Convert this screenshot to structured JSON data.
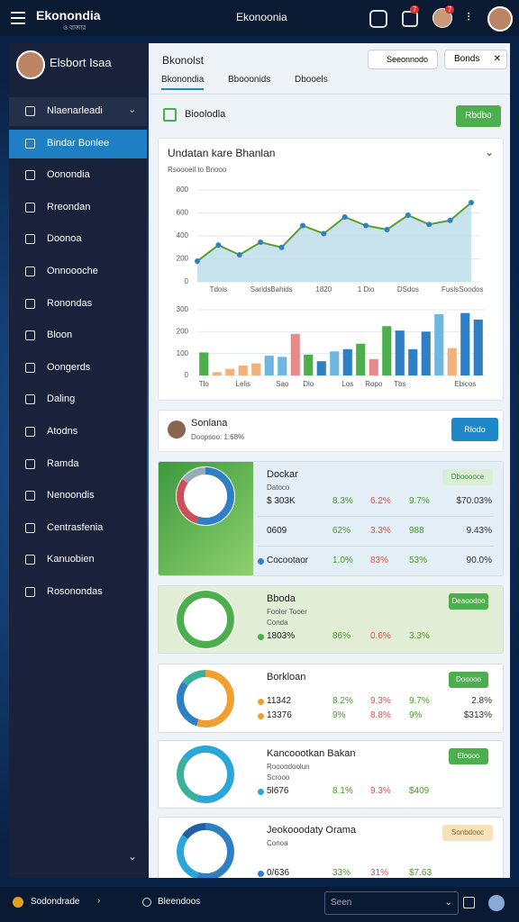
{
  "topbar": {
    "brand": "Ekonondia",
    "brand_sub": "ও বাজার",
    "center": "Ekonoonia",
    "badges": [
      "7",
      "7"
    ]
  },
  "sidebar": {
    "profile": "Elsbort Isaa",
    "items": [
      "Nlaenarleadi",
      "Bindar Bonlee",
      "Oonondia",
      "Rreondan",
      "Doonoa",
      "Onnoooche",
      "Ronondas",
      "Bloon",
      "Oongerds",
      "Daling",
      "Atodns",
      "Ramda",
      "Nenoondis",
      "Centrasfenia",
      "Kanuobien",
      "Rosonondas"
    ],
    "active": 1
  },
  "header": {
    "title": "Bkonolst",
    "tabs": [
      "Bkonondia",
      "Bbooonids",
      "Dbooels"
    ],
    "active_tab": 0,
    "search": "Seeonnodo",
    "button": "Bonds"
  },
  "toolbar": {
    "label": "Bioolodla",
    "button": "Rbdbo"
  },
  "chart_card": {
    "title": "Undatan kare Bhanlan",
    "subtitle": "Rsoooeil to Bnooo"
  },
  "chart_data": [
    {
      "type": "line",
      "categories": [
        null,
        "Tdois",
        null,
        "Sarids",
        "Bahids",
        null,
        "1820",
        null,
        "1 Dio",
        null,
        "DSdos",
        null,
        "Fusls",
        "Soodos"
      ],
      "values": [
        180,
        320,
        235,
        345,
        300,
        490,
        420,
        565,
        490,
        455,
        580,
        500,
        535,
        690
      ],
      "color": "#5aa02c",
      "marker_color": "#2f7fc4",
      "area_color": "#bcdcea",
      "ylim": [
        0,
        800
      ],
      "yticks": [
        0,
        200,
        400,
        600,
        800
      ],
      "grid": true
    },
    {
      "type": "bar",
      "categories": [
        "Tlo",
        null,
        null,
        "Lelis",
        null,
        null,
        "Sao",
        null,
        "Dlo",
        null,
        null,
        "Los",
        null,
        "Ropo",
        null,
        "Tbs",
        null,
        null,
        null,
        null,
        "Ebicos",
        null
      ],
      "values": [
        105,
        15,
        30,
        45,
        55,
        90,
        85,
        190,
        95,
        65,
        110,
        120,
        145,
        75,
        225,
        205,
        120,
        200,
        280,
        125,
        285,
        255
      ],
      "colors": [
        "#4cae4c",
        "#f0b27a",
        "#f0b27a",
        "#f0b27a",
        "#f0b27a",
        "#6fb7e0",
        "#6fb7e0",
        "#e88a8a",
        "#4cae4c",
        "#2f7fc4",
        "#6fb7e0",
        "#2f7fc4",
        "#4cae4c",
        "#e88a8a",
        "#4cae4c",
        "#2f7fc4",
        "#2f7fc4",
        "#2f7fc4",
        "#6fb7e0",
        "#f0b27a",
        "#2f7fc4",
        "#2f7fc4"
      ],
      "ylim": [
        0,
        300
      ],
      "yticks": [
        0,
        100,
        200,
        300
      ],
      "grid": true
    }
  ],
  "profile_card": {
    "name": "Sonlana",
    "detail": "Doopsoo: 1:68%",
    "button": "Rlodo"
  },
  "cards": [
    {
      "title": "Dockar",
      "subtitle": "Datoco",
      "badge": "Dbooooce",
      "rows": [
        [
          "$ 303K",
          "8.3%",
          "6.2%",
          "9.7%",
          "$70.03%"
        ],
        [
          "0609",
          "62%",
          "3.3%",
          "988",
          "9.43%"
        ],
        [
          "Cocootaor",
          "1.0%",
          "83%",
          "53%",
          "90.0%"
        ]
      ]
    },
    {
      "title": "Bboda",
      "subtitle": "Fooler Tooer",
      "sub2": "Conda",
      "button": "Deaoodoo",
      "rows": [
        [
          "1803%",
          "86%",
          "0.6%",
          "3.3%"
        ]
      ]
    },
    {
      "title": "Borkloan",
      "button": "Dooooo",
      "rows": [
        [
          "11342",
          "8.2%",
          "9.3%",
          "9.7%",
          "2.8%"
        ],
        [
          "13376",
          "9%",
          "8.8%",
          "9%",
          "$313%"
        ]
      ]
    },
    {
      "title": "Kancoootkan Bakan",
      "subtitle": "Roooodoolun",
      "sub2": "Scrooo",
      "button": "Eloooo",
      "rows": [
        [
          "5l676",
          "8.1%",
          "9.3%",
          "$409"
        ]
      ]
    },
    {
      "title": "Jeokooodaty Orama",
      "subtitle": "Conoa",
      "badge": "Sonbdooc",
      "rows": [
        [
          "0/636",
          "33%",
          "31%",
          "$7.63"
        ]
      ]
    }
  ],
  "bottombar": {
    "left": "Sodondrade",
    "middle": "Bleendoos",
    "input": "Seen"
  }
}
